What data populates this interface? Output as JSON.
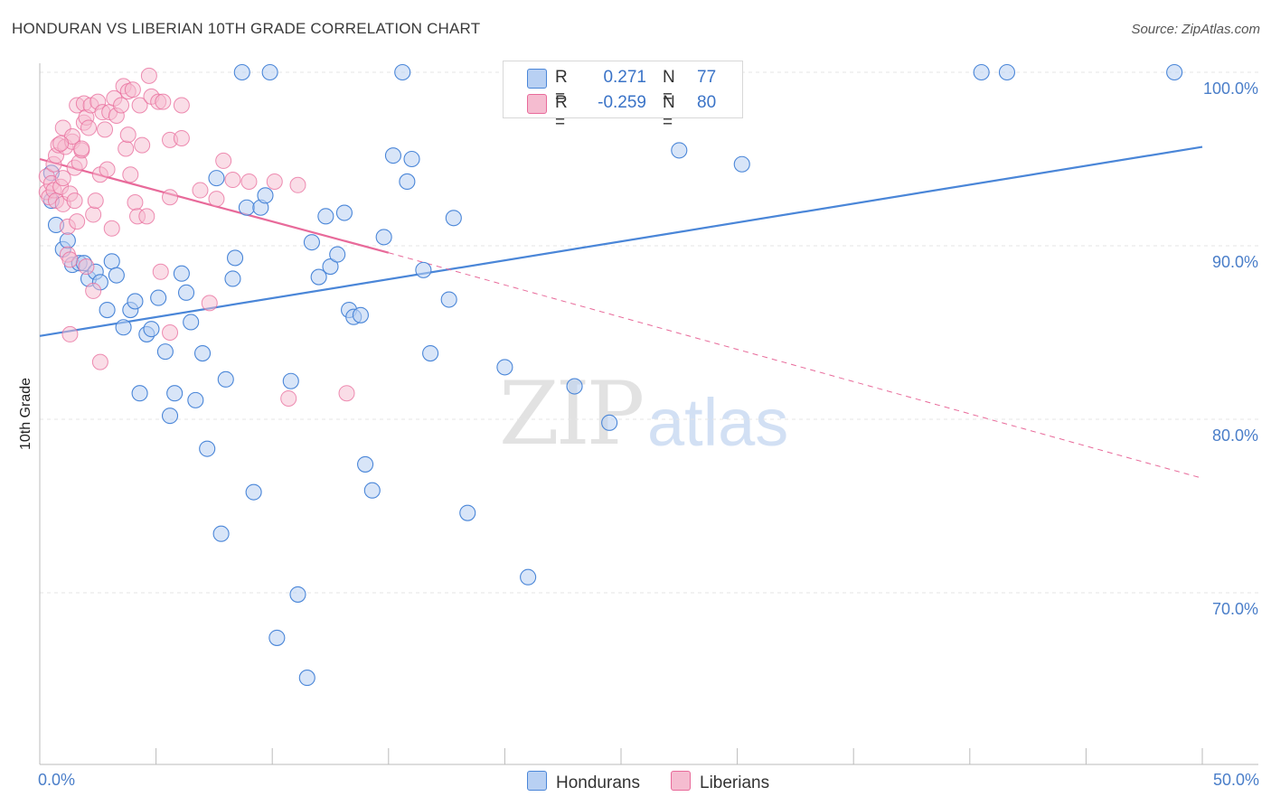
{
  "title": "HONDURAN VS LIBERIAN 10TH GRADE CORRELATION CHART",
  "source": "Source: ZipAtlas.com",
  "watermark": {
    "zip": "ZIP",
    "atlas": "atlas"
  },
  "colors": {
    "blue": "#4a86d8",
    "blue_fill": "#b8d0f3",
    "pink": "#e86a9a",
    "pink_fill": "#f5bcd0",
    "tick_blue": "#4a7ec9",
    "grid": "#e6e6e6"
  },
  "legend_box": {
    "rows": [
      {
        "r_label": "R =",
        "r_value": "0.271",
        "n_label": "N =",
        "n_value": "77"
      },
      {
        "r_label": "R =",
        "r_value": "-0.259",
        "n_label": "N =",
        "n_value": "80"
      }
    ]
  },
  "bottom_legend": [
    "Hondurans",
    "Liberians"
  ],
  "chart_data": {
    "type": "scatter",
    "title": "HONDURAN VS LIBERIAN 10TH GRADE CORRELATION CHART",
    "xlabel": "",
    "ylabel": "10th Grade",
    "xlim": [
      0,
      50
    ],
    "ylim": [
      60.5,
      101.5
    ],
    "x_tick_labels": [
      "0.0%",
      "50.0%"
    ],
    "y_tick_labels": [
      "100.0%",
      "90.0%",
      "80.0%",
      "70.0%"
    ],
    "y_ticks": [
      100,
      90,
      80,
      70
    ],
    "grid": true,
    "legend_placement": "top-center",
    "series": [
      {
        "name": "Hondurans",
        "color": "#4a86d8",
        "trend": {
          "x0": 0,
          "y0": 84.8,
          "x1": 50,
          "y1": 95.7
        },
        "points": [
          [
            0.5,
            94.2
          ],
          [
            0.5,
            92.6
          ],
          [
            0.7,
            91.2
          ],
          [
            1.0,
            89.8
          ],
          [
            1.2,
            90.3
          ],
          [
            1.4,
            88.9
          ],
          [
            1.7,
            89.0
          ],
          [
            1.9,
            89.0
          ],
          [
            2.1,
            88.1
          ],
          [
            2.4,
            88.5
          ],
          [
            2.6,
            87.9
          ],
          [
            2.9,
            86.3
          ],
          [
            3.1,
            89.1
          ],
          [
            3.3,
            88.3
          ],
          [
            3.6,
            85.3
          ],
          [
            3.9,
            86.3
          ],
          [
            4.1,
            86.8
          ],
          [
            4.3,
            81.5
          ],
          [
            4.6,
            84.9
          ],
          [
            4.8,
            85.2
          ],
          [
            5.1,
            87.0
          ],
          [
            5.4,
            83.9
          ],
          [
            5.6,
            80.2
          ],
          [
            5.8,
            81.5
          ],
          [
            6.1,
            88.4
          ],
          [
            6.3,
            87.3
          ],
          [
            6.5,
            85.6
          ],
          [
            6.7,
            81.1
          ],
          [
            7.0,
            83.8
          ],
          [
            7.2,
            78.3
          ],
          [
            7.6,
            93.9
          ],
          [
            7.8,
            73.4
          ],
          [
            8.0,
            82.3
          ],
          [
            8.3,
            88.1
          ],
          [
            8.4,
            89.3
          ],
          [
            8.7,
            100.0
          ],
          [
            8.9,
            92.2
          ],
          [
            9.2,
            75.8
          ],
          [
            9.5,
            92.2
          ],
          [
            9.7,
            92.9
          ],
          [
            9.9,
            100.0
          ],
          [
            10.2,
            67.4
          ],
          [
            10.8,
            82.2
          ],
          [
            11.1,
            69.9
          ],
          [
            11.5,
            65.1
          ],
          [
            11.7,
            90.2
          ],
          [
            12.0,
            88.2
          ],
          [
            12.3,
            91.7
          ],
          [
            12.5,
            88.8
          ],
          [
            12.8,
            89.5
          ],
          [
            13.1,
            91.9
          ],
          [
            13.3,
            86.3
          ],
          [
            13.5,
            85.9
          ],
          [
            13.8,
            86.0
          ],
          [
            14.0,
            77.4
          ],
          [
            14.3,
            75.9
          ],
          [
            14.8,
            90.5
          ],
          [
            15.2,
            95.2
          ],
          [
            15.6,
            100.0
          ],
          [
            15.8,
            93.7
          ],
          [
            16.0,
            95.0
          ],
          [
            16.5,
            88.6
          ],
          [
            16.8,
            83.8
          ],
          [
            17.6,
            86.9
          ],
          [
            17.8,
            91.6
          ],
          [
            18.4,
            74.6
          ],
          [
            20.0,
            83.0
          ],
          [
            21.0,
            70.9
          ],
          [
            23.0,
            81.9
          ],
          [
            24.5,
            79.8
          ],
          [
            27.1,
            100.0
          ],
          [
            27.5,
            95.5
          ],
          [
            28.1,
            100.0
          ],
          [
            30.2,
            94.7
          ],
          [
            40.5,
            100.0
          ],
          [
            41.6,
            100.0
          ],
          [
            48.8,
            100.0
          ]
        ]
      },
      {
        "name": "Liberians",
        "color": "#e86a9a",
        "trend": {
          "x0": 0,
          "y0": 95.0,
          "x1": 15.0,
          "y1": 89.6
        },
        "trend_dashed": {
          "x0": 15.0,
          "y0": 89.6,
          "x1": 50,
          "y1": 76.6
        },
        "points": [
          [
            0.3,
            94.0
          ],
          [
            0.3,
            93.1
          ],
          [
            0.4,
            92.8
          ],
          [
            0.5,
            93.6
          ],
          [
            0.6,
            93.2
          ],
          [
            0.6,
            94.7
          ],
          [
            0.7,
            92.6
          ],
          [
            0.7,
            95.2
          ],
          [
            0.8,
            95.8
          ],
          [
            0.9,
            93.4
          ],
          [
            1.0,
            96.8
          ],
          [
            1.0,
            93.9
          ],
          [
            1.0,
            92.4
          ],
          [
            1.1,
            95.7
          ],
          [
            1.2,
            91.1
          ],
          [
            1.2,
            89.5
          ],
          [
            1.3,
            89.2
          ],
          [
            1.3,
            93.0
          ],
          [
            1.4,
            96.0
          ],
          [
            1.4,
            96.3
          ],
          [
            1.5,
            94.5
          ],
          [
            1.5,
            92.6
          ],
          [
            1.6,
            91.4
          ],
          [
            1.6,
            98.1
          ],
          [
            1.7,
            94.8
          ],
          [
            1.8,
            95.5
          ],
          [
            1.9,
            98.2
          ],
          [
            1.9,
            97.1
          ],
          [
            2.0,
            88.8
          ],
          [
            2.0,
            97.4
          ],
          [
            2.1,
            96.8
          ],
          [
            2.2,
            98.1
          ],
          [
            2.3,
            91.8
          ],
          [
            2.3,
            87.4
          ],
          [
            2.4,
            92.6
          ],
          [
            2.5,
            98.3
          ],
          [
            2.6,
            94.1
          ],
          [
            2.7,
            97.7
          ],
          [
            2.8,
            96.7
          ],
          [
            2.9,
            94.4
          ],
          [
            3.0,
            97.7
          ],
          [
            3.2,
            98.5
          ],
          [
            3.1,
            91.0
          ],
          [
            3.3,
            97.5
          ],
          [
            3.5,
            98.1
          ],
          [
            3.6,
            99.2
          ],
          [
            3.7,
            95.6
          ],
          [
            3.8,
            98.9
          ],
          [
            3.8,
            96.4
          ],
          [
            3.9,
            94.1
          ],
          [
            4.0,
            99.0
          ],
          [
            4.1,
            92.5
          ],
          [
            4.2,
            91.7
          ],
          [
            4.3,
            98.1
          ],
          [
            4.4,
            95.8
          ],
          [
            4.6,
            91.7
          ],
          [
            4.7,
            99.8
          ],
          [
            4.8,
            98.6
          ],
          [
            5.1,
            98.3
          ],
          [
            5.2,
            88.5
          ],
          [
            5.3,
            98.3
          ],
          [
            5.6,
            96.1
          ],
          [
            5.6,
            92.8
          ],
          [
            6.1,
            98.1
          ],
          [
            6.9,
            93.2
          ],
          [
            7.3,
            86.7
          ],
          [
            7.6,
            92.7
          ],
          [
            7.9,
            94.9
          ],
          [
            8.3,
            93.8
          ],
          [
            9.0,
            93.7
          ],
          [
            10.1,
            93.7
          ],
          [
            10.7,
            81.2
          ],
          [
            11.1,
            93.5
          ],
          [
            13.2,
            81.5
          ],
          [
            1.3,
            84.9
          ],
          [
            2.6,
            83.3
          ],
          [
            5.6,
            85.0
          ],
          [
            6.1,
            96.2
          ],
          [
            1.8,
            95.6
          ],
          [
            0.9,
            95.9
          ]
        ]
      }
    ]
  }
}
